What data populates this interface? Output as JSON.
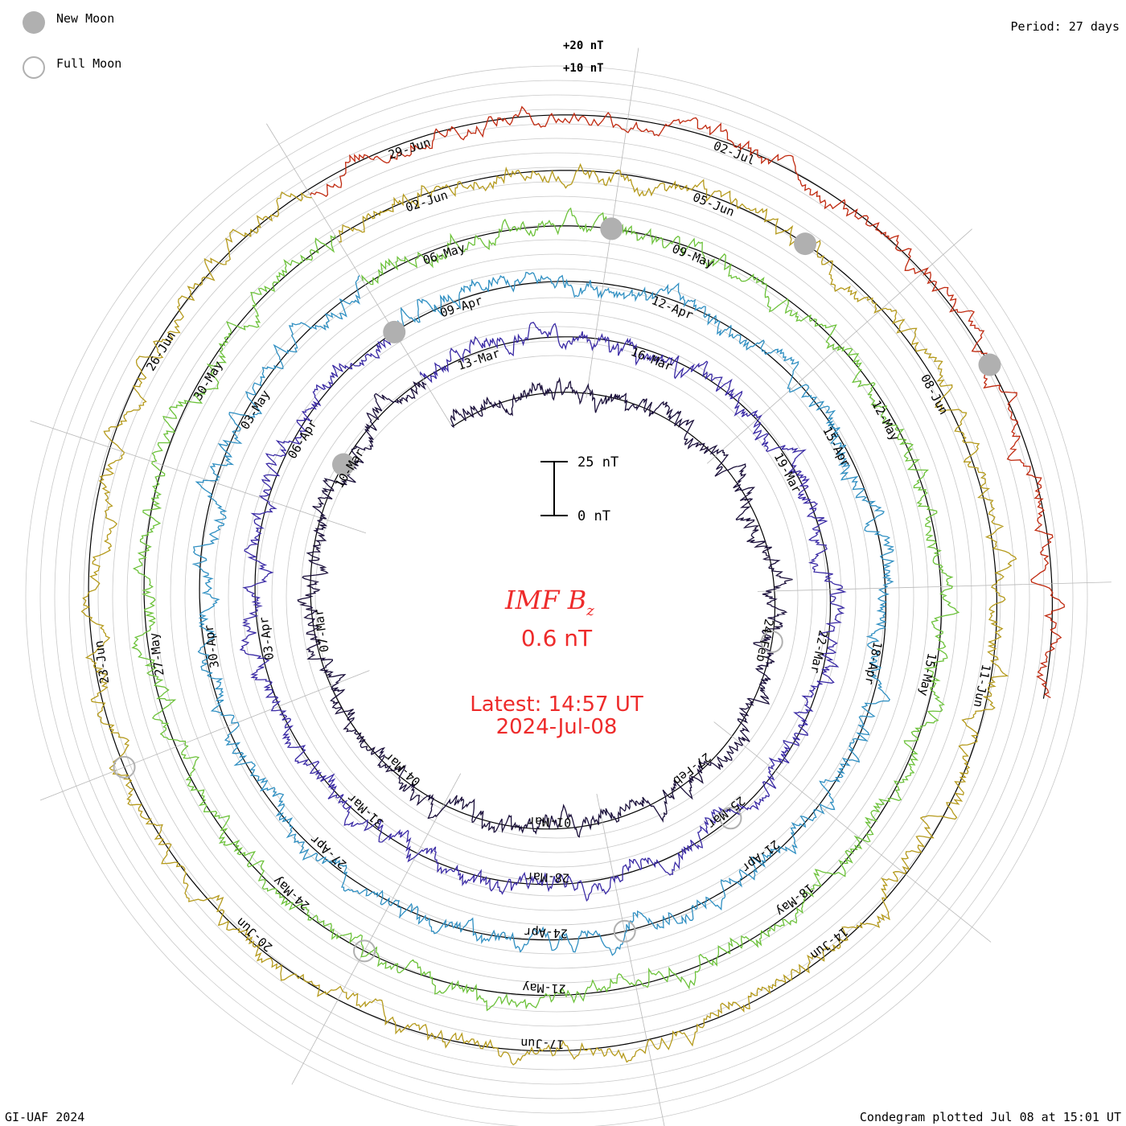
{
  "header": {
    "period_label": "Period: 27 days"
  },
  "legend": {
    "new_moon_label": "New Moon",
    "full_moon_label": "Full Moon",
    "new_moon_color": "#b0b0b0",
    "full_moon_color": "#b0b0b0"
  },
  "scale": {
    "plus20_label": "+20 nT",
    "plus10_label": "+10 nT",
    "bar_top_label": "25 nT",
    "bar_bottom_label": "0 nT"
  },
  "center": {
    "title_main": "IMF B",
    "title_sub": "z",
    "current_value": "0.6 nT",
    "latest_label": "Latest: 14:57 UT",
    "latest_date": "2024-Jul-08"
  },
  "footer": {
    "left": "GI-UAF 2024",
    "right": "Condegram plotted Jul 08 at 15:01 UT"
  },
  "chart_data": {
    "type": "line",
    "chart_kind": "condegram (spiral time series, 27-day rotation)",
    "quantity": "IMF Bz",
    "units": "nT",
    "period_days": 27,
    "grid": true,
    "series": [
      {
        "rotation": 1,
        "start": "2024-02-14",
        "end": "2024-03-12",
        "color": "#1a0f3a",
        "date_labels": [
          "24-Feb",
          "27-Feb",
          "01-Mar",
          "04-Mar",
          "07-Mar",
          "10-Mar"
        ]
      },
      {
        "rotation": 2,
        "start": "2024-03-12",
        "end": "2024-04-08",
        "color": "#3a2aa5",
        "date_labels": [
          "13-Mar",
          "16-Mar",
          "19-Mar",
          "22-Mar",
          "25-Mar",
          "28-Mar",
          "31-Mar",
          "03-Apr",
          "06-Apr"
        ]
      },
      {
        "rotation": 3,
        "start": "2024-04-08",
        "end": "2024-05-05",
        "color": "#2f8fc2",
        "date_labels": [
          "09-Apr",
          "12-Apr",
          "15-Apr",
          "18-Apr",
          "21-Apr",
          "24-Apr",
          "27-Apr",
          "30-Apr",
          "03-May"
        ]
      },
      {
        "rotation": 4,
        "start": "2024-05-05",
        "end": "2024-06-01",
        "color": "#6cc23a",
        "date_labels": [
          "06-May",
          "09-May",
          "12-May",
          "15-May",
          "18-May",
          "21-May",
          "24-May",
          "27-May",
          "30-May"
        ]
      },
      {
        "rotation": 5,
        "start": "2024-06-01",
        "end": "2024-06-28",
        "color": "#b59a1c",
        "date_labels": [
          "02-Jun",
          "05-Jun",
          "08-Jun",
          "11-Jun",
          "14-Jun",
          "17-Jun",
          "20-Jun",
          "23-Jun",
          "26-Jun"
        ]
      },
      {
        "rotation": 6,
        "start": "2024-06-28",
        "end": "2024-07-08",
        "color": "#c02a10",
        "date_labels": [
          "29-Jun",
          "02-Jul"
        ]
      }
    ],
    "new_moons": [
      "2024-03-10",
      "2024-04-08",
      "2024-05-08",
      "2024-06-06",
      "2024-07-05"
    ],
    "full_moons": [
      "2024-02-24",
      "2024-03-25",
      "2024-04-23",
      "2024-05-23",
      "2024-06-22"
    ]
  }
}
